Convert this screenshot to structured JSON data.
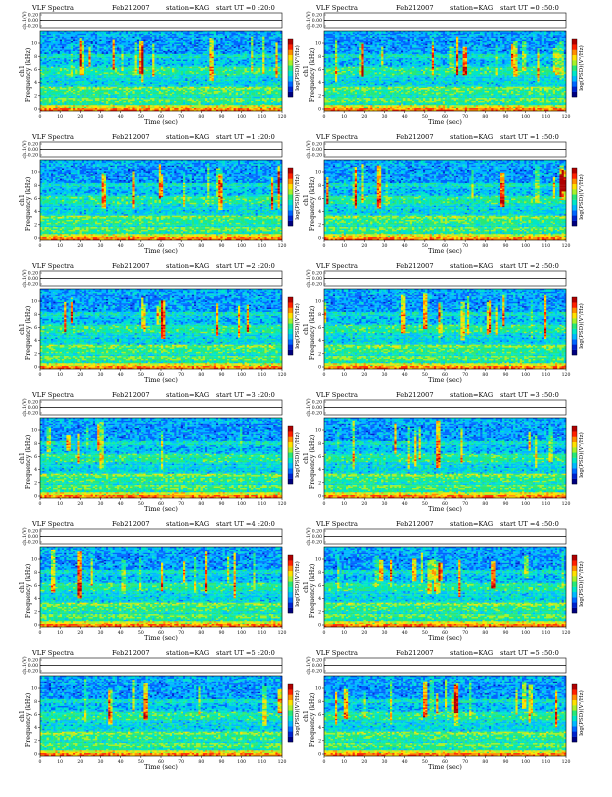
{
  "colormap": [
    "#00007f",
    "#0022cc",
    "#0066ff",
    "#00b8ff",
    "#00e6c8",
    "#28e878",
    "#a8f028",
    "#ffe000",
    "#ff8c00",
    "#ff2000",
    "#b00000"
  ],
  "axis_labels": {
    "time": "Time  (sec)",
    "frequency": "Frequency  (kHz)",
    "ch1_side": "ch1",
    "ch1_top": "ch.1(V)",
    "colorbar": "log(PSD)(V²/Hz)"
  },
  "chart_data": [
    {
      "type": "heatmap",
      "header": {
        "left": "VLF Spectra",
        "date": "Feb212007",
        "station": "station=KAG",
        "start": "start  UT =0 :20:0"
      },
      "x": {
        "min": 0,
        "max": 120,
        "ticks": [
          "0",
          "10",
          "20",
          "30",
          "40",
          "50",
          "60",
          "70",
          "80",
          "90",
          "100",
          "110",
          "120"
        ]
      },
      "y": {
        "min": 0,
        "max": 10,
        "ticks": [
          "0",
          "2",
          "4",
          "6",
          "8",
          "10"
        ]
      },
      "top_panel_ticks": [
        "0.20",
        "0.00",
        "-0.20"
      ],
      "colorbar": "log(PSD)(V²/Hz)"
    },
    {
      "type": "heatmap",
      "header": {
        "left": "VLF Spectra",
        "date": "Feb212007",
        "station": "station=KAG",
        "start": "start  UT =0 :50:0"
      },
      "x": {
        "min": 0,
        "max": 120,
        "ticks": [
          "0",
          "10",
          "20",
          "30",
          "40",
          "50",
          "60",
          "70",
          "80",
          "90",
          "100",
          "110",
          "120"
        ]
      },
      "y": {
        "min": 0,
        "max": 10,
        "ticks": [
          "0",
          "2",
          "4",
          "6",
          "8",
          "10"
        ]
      },
      "top_panel_ticks": [
        "0.20",
        "0.00",
        "-0.20"
      ],
      "colorbar": "log(PSD)(V²/Hz)"
    },
    {
      "type": "heatmap",
      "header": {
        "left": "VLF Spectra",
        "date": "Feb212007",
        "station": "station=KAG",
        "start": "start  UT =1 :20:0"
      },
      "x": {
        "min": 0,
        "max": 120,
        "ticks": [
          "0",
          "10",
          "20",
          "30",
          "40",
          "50",
          "60",
          "70",
          "80",
          "90",
          "100",
          "110",
          "120"
        ]
      },
      "y": {
        "min": 0,
        "max": 10,
        "ticks": [
          "0",
          "2",
          "4",
          "6",
          "8",
          "10"
        ]
      },
      "top_panel_ticks": [
        "0.20",
        "0.00",
        "-0.20"
      ],
      "colorbar": "log(PSD)(V²/Hz)"
    },
    {
      "type": "heatmap",
      "header": {
        "left": "VLF Spectra",
        "date": "Feb212007",
        "station": "station=KAG",
        "start": "start  UT =1 :50:0"
      },
      "x": {
        "min": 0,
        "max": 120,
        "ticks": [
          "0",
          "10",
          "20",
          "30",
          "40",
          "50",
          "60",
          "70",
          "80",
          "90",
          "100",
          "110",
          "120"
        ]
      },
      "y": {
        "min": 0,
        "max": 10,
        "ticks": [
          "0",
          "2",
          "4",
          "6",
          "8",
          "10"
        ]
      },
      "top_panel_ticks": [
        "0.20",
        "0.00",
        "-0.20"
      ],
      "colorbar": "log(PSD)(V²/Hz)"
    },
    {
      "type": "heatmap",
      "header": {
        "left": "VLF Spectra",
        "date": "Feb212007",
        "station": "station=KAG",
        "start": "start  UT =2 :20:0"
      },
      "x": {
        "min": 0,
        "max": 120,
        "ticks": [
          "0",
          "10",
          "20",
          "30",
          "40",
          "50",
          "60",
          "70",
          "80",
          "90",
          "100",
          "110",
          "120"
        ]
      },
      "y": {
        "min": 0,
        "max": 10,
        "ticks": [
          "0",
          "2",
          "4",
          "6",
          "8",
          "10"
        ]
      },
      "top_panel_ticks": [
        "0.20",
        "0.00",
        "-0.20"
      ],
      "colorbar": "log(PSD)(V²/Hz)"
    },
    {
      "type": "heatmap",
      "header": {
        "left": "VLF Spectra",
        "date": "Feb212007",
        "station": "station=KAG",
        "start": "start  UT =2 :50:0"
      },
      "x": {
        "min": 0,
        "max": 120,
        "ticks": [
          "0",
          "10",
          "20",
          "30",
          "40",
          "50",
          "60",
          "70",
          "80",
          "90",
          "100",
          "110",
          "120"
        ]
      },
      "y": {
        "min": 0,
        "max": 10,
        "ticks": [
          "0",
          "2",
          "4",
          "6",
          "8",
          "10"
        ]
      },
      "top_panel_ticks": [
        "0.20",
        "0.00",
        "-0.20"
      ],
      "colorbar": "log(PSD)(V²/Hz)"
    },
    {
      "type": "heatmap",
      "header": {
        "left": "VLF Spectra",
        "date": "Feb212007",
        "station": "station=KAG",
        "start": "start  UT =3 :20:0"
      },
      "x": {
        "min": 0,
        "max": 120,
        "ticks": [
          "0",
          "10",
          "20",
          "30",
          "40",
          "50",
          "60",
          "70",
          "80",
          "90",
          "100",
          "110",
          "120"
        ]
      },
      "y": {
        "min": 0,
        "max": 10,
        "ticks": [
          "0",
          "2",
          "4",
          "6",
          "8",
          "10"
        ]
      },
      "top_panel_ticks": [
        "0.20",
        "0.00",
        "-0.20"
      ],
      "colorbar": "log(PSD)(V²/Hz)"
    },
    {
      "type": "heatmap",
      "header": {
        "left": "VLF Spectra",
        "date": "Feb212007",
        "station": "station=KAG",
        "start": "start  UT =3 :50:0"
      },
      "x": {
        "min": 0,
        "max": 120,
        "ticks": [
          "0",
          "10",
          "20",
          "30",
          "40",
          "50",
          "60",
          "70",
          "80",
          "90",
          "100",
          "110",
          "120"
        ]
      },
      "y": {
        "min": 0,
        "max": 10,
        "ticks": [
          "0",
          "2",
          "4",
          "6",
          "8",
          "10"
        ]
      },
      "top_panel_ticks": [
        "0.20",
        "0.00",
        "-0.20"
      ],
      "colorbar": "log(PSD)(V²/Hz)"
    },
    {
      "type": "heatmap",
      "header": {
        "left": "VLF Spectra",
        "date": "Feb212007",
        "station": "station=KAG",
        "start": "start  UT =4 :20:0"
      },
      "x": {
        "min": 0,
        "max": 120,
        "ticks": [
          "0",
          "10",
          "20",
          "30",
          "40",
          "50",
          "60",
          "70",
          "80",
          "90",
          "100",
          "110",
          "120"
        ]
      },
      "y": {
        "min": 0,
        "max": 10,
        "ticks": [
          "0",
          "2",
          "4",
          "6",
          "8",
          "10"
        ]
      },
      "top_panel_ticks": [
        "0.20",
        "0.00",
        "-0.20"
      ],
      "colorbar": "log(PSD)(V²/Hz)"
    },
    {
      "type": "heatmap",
      "header": {
        "left": "VLF Spectra",
        "date": "Feb212007",
        "station": "station=KAG",
        "start": "start  UT =4 :50:0"
      },
      "x": {
        "min": 0,
        "max": 120,
        "ticks": [
          "0",
          "10",
          "20",
          "30",
          "40",
          "50",
          "60",
          "70",
          "80",
          "90",
          "100",
          "110",
          "120"
        ]
      },
      "y": {
        "min": 0,
        "max": 10,
        "ticks": [
          "0",
          "2",
          "4",
          "6",
          "8",
          "10"
        ]
      },
      "top_panel_ticks": [
        "0.20",
        "0.00",
        "-0.20"
      ],
      "colorbar": "log(PSD)(V²/Hz)"
    },
    {
      "type": "heatmap",
      "header": {
        "left": "VLF Spectra",
        "date": "Feb212007",
        "station": "station=KAG",
        "start": "start  UT =5 :20:0"
      },
      "x": {
        "min": 0,
        "max": 120,
        "ticks": [
          "0",
          "10",
          "20",
          "30",
          "40",
          "50",
          "60",
          "70",
          "80",
          "90",
          "100",
          "110",
          "120"
        ]
      },
      "y": {
        "min": 0,
        "max": 10,
        "ticks": [
          "0",
          "2",
          "4",
          "6",
          "8",
          "10"
        ]
      },
      "top_panel_ticks": [
        "0.20",
        "0.00",
        "-0.20"
      ],
      "colorbar": "log(PSD)(V²/Hz)"
    },
    {
      "type": "heatmap",
      "header": {
        "left": "VLF Spectra",
        "date": "Feb212007",
        "station": "station=KAG",
        "start": "start  UT =5 :50:0"
      },
      "x": {
        "min": 0,
        "max": 120,
        "ticks": [
          "0",
          "10",
          "20",
          "30",
          "40",
          "50",
          "60",
          "70",
          "80",
          "90",
          "100",
          "110",
          "120"
        ]
      },
      "y": {
        "min": 0,
        "max": 10,
        "ticks": [
          "0",
          "2",
          "4",
          "6",
          "8",
          "10"
        ]
      },
      "top_panel_ticks": [
        "0.20",
        "0.00",
        "-0.20"
      ],
      "colorbar": "log(PSD)(V²/Hz)"
    }
  ]
}
